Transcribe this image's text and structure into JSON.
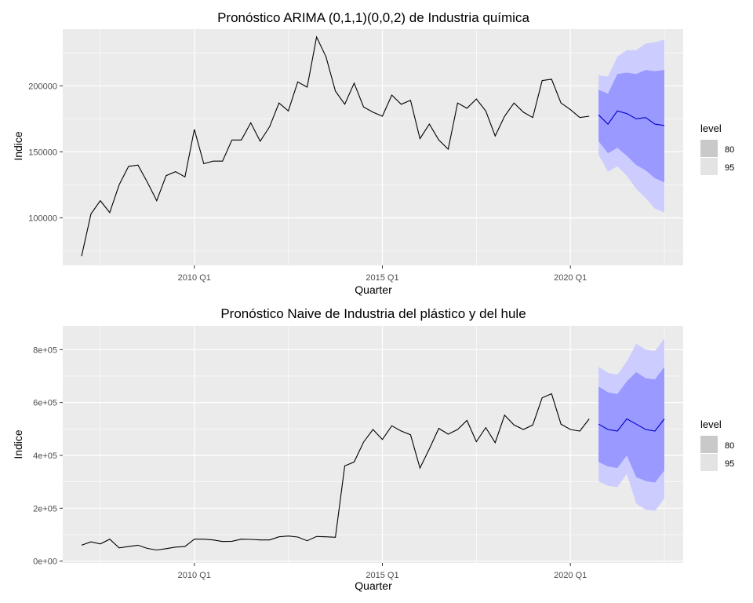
{
  "chart_data": [
    {
      "type": "line",
      "title": "Pronóstico ARIMA (0,1,1)(0,0,2) de Industria química",
      "xlabel": "Quarter",
      "ylabel": "Indice",
      "xlim": [
        2006.5,
        2023.0
      ],
      "ylim": [
        64000,
        243000
      ],
      "x_ticks": [
        {
          "label": "2010 Q1",
          "value": 2010.0
        },
        {
          "label": "2015 Q1",
          "value": 2015.0
        },
        {
          "label": "2020 Q1",
          "value": 2020.0
        }
      ],
      "y_ticks": [
        {
          "label": "100000",
          "value": 100000
        },
        {
          "label": "150000",
          "value": 150000
        },
        {
          "label": "200000",
          "value": 200000
        }
      ],
      "grid": true,
      "series": [
        {
          "role": "history",
          "color": "#000000",
          "x": [
            2007.0,
            2007.25,
            2007.5,
            2007.75,
            2008.0,
            2008.25,
            2008.5,
            2008.75,
            2009.0,
            2009.25,
            2009.5,
            2009.75,
            2010.0,
            2010.25,
            2010.5,
            2010.75,
            2011.0,
            2011.25,
            2011.5,
            2011.75,
            2012.0,
            2012.25,
            2012.5,
            2012.75,
            2013.0,
            2013.25,
            2013.5,
            2013.75,
            2014.0,
            2014.25,
            2014.5,
            2014.75,
            2015.0,
            2015.25,
            2015.5,
            2015.75,
            2016.0,
            2016.25,
            2016.5,
            2016.75,
            2017.0,
            2017.25,
            2017.5,
            2017.75,
            2018.0,
            2018.25,
            2018.5,
            2018.75,
            2019.0,
            2019.25,
            2019.5,
            2019.75,
            2020.0,
            2020.25,
            2020.5
          ],
          "values": [
            71000,
            103000,
            113000,
            104000,
            125000,
            139000,
            140000,
            127000,
            113000,
            132000,
            135000,
            131000,
            167000,
            141000,
            143000,
            143000,
            159000,
            159000,
            172000,
            158000,
            169000,
            187000,
            181000,
            203000,
            199000,
            237000,
            222000,
            196000,
            186000,
            202000,
            184000,
            180000,
            177000,
            193000,
            186000,
            189000,
            160000,
            171000,
            159000,
            152000,
            187000,
            183000,
            190000,
            181000,
            162000,
            177000,
            187000,
            180000,
            176000,
            204000,
            205000,
            187000,
            182000,
            176000,
            177000
          ]
        }
      ],
      "forecast": {
        "color": "#0000cc",
        "x": [
          2020.75,
          2021.0,
          2021.25,
          2021.5,
          2021.75,
          2022.0,
          2022.25,
          2022.5
        ],
        "mean": [
          178000,
          171000,
          181000,
          179000,
          175000,
          176000,
          171000,
          170000
        ],
        "lo80": [
          158000,
          149000,
          153000,
          147000,
          140000,
          136000,
          130000,
          127000
        ],
        "hi80": [
          197000,
          194000,
          209000,
          210000,
          209000,
          212000,
          211000,
          212000
        ],
        "lo95": [
          148000,
          135000,
          139000,
          132000,
          122000,
          115000,
          107000,
          104000
        ],
        "hi95": [
          208000,
          207000,
          222000,
          227000,
          227000,
          232000,
          233000,
          235000
        ]
      },
      "legend": {
        "title": "level",
        "entries": [
          "80",
          "95"
        ],
        "placement": "right",
        "colors": {
          "80": "#c9c9c9",
          "95": "#e3e3e3"
        }
      },
      "band_colors": {
        "80": "#9999ff",
        "95": "#ccccff"
      },
      "panel_color": "#ebebeb"
    },
    {
      "type": "line",
      "title": "Pronóstico Naive de Industria del plástico y del hule",
      "xlabel": "Quarter",
      "ylabel": "Indice",
      "xlim": [
        2006.5,
        2023.0
      ],
      "ylim": [
        -7000,
        890000
      ],
      "x_ticks": [
        {
          "label": "2010 Q1",
          "value": 2010.0
        },
        {
          "label": "2015 Q1",
          "value": 2015.0
        },
        {
          "label": "2020 Q1",
          "value": 2020.0
        }
      ],
      "y_ticks": [
        {
          "label": "0e+00",
          "value": 0
        },
        {
          "label": "2e+05",
          "value": 200000
        },
        {
          "label": "4e+05",
          "value": 400000
        },
        {
          "label": "6e+05",
          "value": 600000
        },
        {
          "label": "8e+05",
          "value": 800000
        }
      ],
      "grid": true,
      "series": [
        {
          "role": "history",
          "color": "#000000",
          "x": [
            2007.0,
            2007.25,
            2007.5,
            2007.75,
            2008.0,
            2008.25,
            2008.5,
            2008.75,
            2009.0,
            2009.25,
            2009.5,
            2009.75,
            2010.0,
            2010.25,
            2010.5,
            2010.75,
            2011.0,
            2011.25,
            2011.5,
            2011.75,
            2012.0,
            2012.25,
            2012.5,
            2012.75,
            2013.0,
            2013.25,
            2013.5,
            2013.75,
            2014.0,
            2014.25,
            2014.5,
            2014.75,
            2015.0,
            2015.25,
            2015.5,
            2015.75,
            2016.0,
            2016.25,
            2016.5,
            2016.75,
            2017.0,
            2017.25,
            2017.5,
            2017.75,
            2018.0,
            2018.25,
            2018.5,
            2018.75,
            2019.0,
            2019.25,
            2019.5,
            2019.75,
            2020.0,
            2020.25,
            2020.5
          ],
          "values": [
            60000,
            73000,
            65000,
            83000,
            50000,
            55000,
            60000,
            48000,
            42000,
            47000,
            53000,
            55000,
            83000,
            83000,
            80000,
            74000,
            75000,
            83000,
            82000,
            80000,
            80000,
            92000,
            95000,
            91000,
            77000,
            93000,
            92000,
            90000,
            360000,
            375000,
            450000,
            498000,
            460000,
            512000,
            492000,
            478000,
            352000,
            425000,
            502000,
            480000,
            498000,
            532000,
            452000,
            505000,
            448000,
            552000,
            515000,
            498000,
            515000,
            618000,
            633000,
            518000,
            498000,
            492000,
            538000
          ]
        }
      ],
      "forecast": {
        "color": "#0000cc",
        "x": [
          2020.75,
          2021.0,
          2021.25,
          2021.5,
          2021.75,
          2022.0,
          2022.25,
          2022.5
        ],
        "mean": [
          518000,
          498000,
          492000,
          538000,
          518000,
          498000,
          492000,
          538000
        ],
        "lo80": [
          375000,
          358000,
          352000,
          400000,
          318000,
          303000,
          297000,
          343000
        ],
        "hi80": [
          660000,
          638000,
          632000,
          680000,
          715000,
          692000,
          687000,
          735000
        ],
        "lo95": [
          302000,
          285000,
          280000,
          330000,
          218000,
          195000,
          190000,
          238000
        ],
        "hi95": [
          735000,
          712000,
          705000,
          755000,
          822000,
          800000,
          795000,
          842000
        ]
      },
      "legend": {
        "title": "level",
        "entries": [
          "80",
          "95"
        ],
        "placement": "right",
        "colors": {
          "80": "#c9c9c9",
          "95": "#e3e3e3"
        }
      },
      "band_colors": {
        "80": "#9999ff",
        "95": "#ccccff"
      },
      "panel_color": "#ebebeb"
    }
  ]
}
